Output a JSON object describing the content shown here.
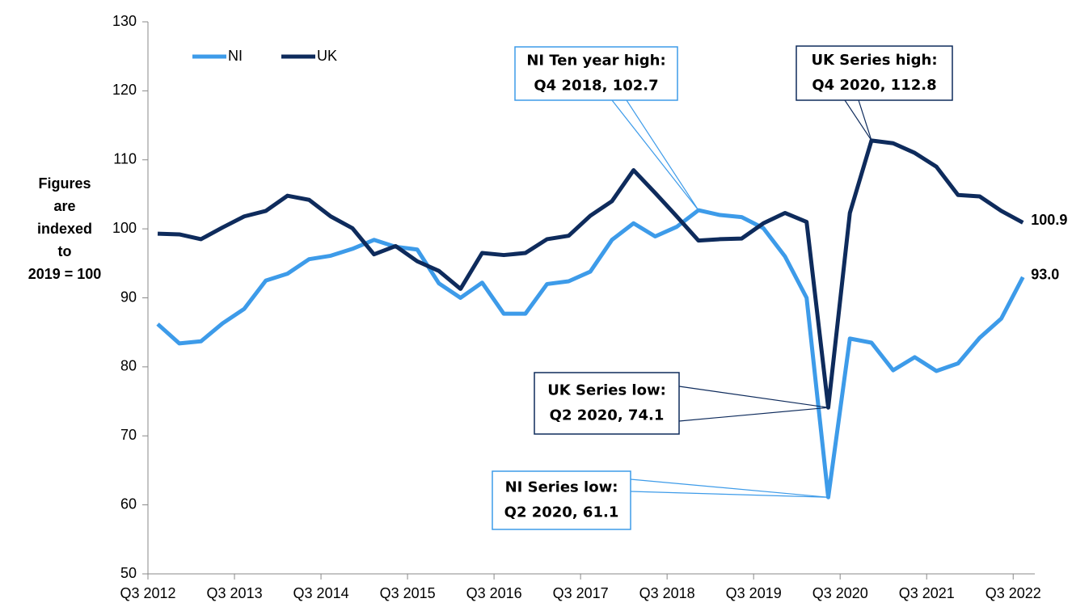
{
  "chart_data": {
    "type": "line",
    "ylabel": [
      "Figures",
      "are",
      "indexed",
      "to",
      "2019 = 100"
    ],
    "categories": [
      "Q3 2012",
      null,
      null,
      null,
      "Q3 2013",
      null,
      null,
      null,
      "Q3 2014",
      null,
      null,
      null,
      "Q3 2015",
      null,
      null,
      null,
      "Q3 2016",
      null,
      null,
      null,
      "Q3 2017",
      null,
      null,
      null,
      "Q3 2018",
      null,
      null,
      null,
      "Q3 2019",
      null,
      null,
      null,
      "Q3 2020",
      null,
      null,
      null,
      "Q3 2021",
      null,
      null,
      null,
      "Q3 2022"
    ],
    "series": [
      {
        "name": "NI",
        "color": "#3d9be9",
        "values": [
          86.2,
          83.4,
          83.7,
          86.3,
          88.4,
          92.5,
          93.5,
          95.6,
          96.1,
          97.1,
          98.4,
          97.4,
          97.0,
          92.1,
          90.0,
          92.2,
          87.7,
          87.7,
          92.0,
          92.4,
          93.8,
          98.4,
          100.8,
          98.9,
          100.3,
          102.7,
          102.0,
          101.7,
          100.1,
          96.0,
          90.0,
          61.1,
          84.1,
          83.5,
          79.5,
          81.4,
          79.4,
          80.5,
          84.2,
          87.0,
          93.0
        ],
        "value_labels": [
          null,
          null,
          null,
          null,
          null,
          null,
          null,
          null,
          null,
          null,
          null,
          null,
          null,
          null,
          null,
          null,
          null,
          null,
          null,
          null,
          null,
          null,
          null,
          null,
          null,
          null,
          null,
          null,
          null,
          null,
          null,
          null,
          null,
          null,
          null,
          null,
          null,
          null,
          null,
          null,
          "93.0"
        ]
      },
      {
        "name": "UK",
        "color": "#0e2b5c",
        "values": [
          99.3,
          99.2,
          98.5,
          100.2,
          101.8,
          102.6,
          104.8,
          104.2,
          101.8,
          100.1,
          96.3,
          97.5,
          95.3,
          93.9,
          91.3,
          96.5,
          96.2,
          96.5,
          98.5,
          99.0,
          101.9,
          104.0,
          108.5,
          105.2,
          101.8,
          98.3,
          98.5,
          98.6,
          100.8,
          102.3,
          101.0,
          74.1,
          102.3,
          112.8,
          112.4,
          111.0,
          109.0,
          104.9,
          104.7,
          102.6,
          100.9
        ],
        "value_labels": [
          null,
          null,
          null,
          null,
          null,
          null,
          null,
          null,
          null,
          null,
          null,
          null,
          null,
          null,
          null,
          null,
          null,
          null,
          null,
          null,
          null,
          null,
          null,
          null,
          null,
          null,
          null,
          null,
          null,
          null,
          null,
          null,
          null,
          null,
          null,
          null,
          null,
          null,
          null,
          null,
          "100.9"
        ]
      }
    ],
    "ylim": [
      50,
      130
    ],
    "yticks": [
      50,
      60,
      70,
      80,
      90,
      100,
      110,
      120,
      130
    ],
    "annotations": [
      {
        "lines": [
          "NI Ten year high:",
          "Q4 2018, 102.7"
        ]
      },
      {
        "lines": [
          "UK Series high:",
          "Q4 2020, 112.8"
        ]
      },
      {
        "lines": [
          "UK Series low:",
          "Q2 2020, 74.1"
        ]
      },
      {
        "lines": [
          "NI Series low:",
          "Q2 2020, 61.1"
        ]
      }
    ],
    "legend": "top-left"
  }
}
